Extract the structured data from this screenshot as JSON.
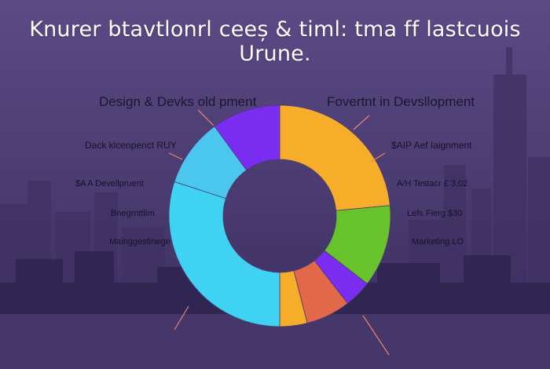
{
  "title": "Knurer btavtlonrl ceeș & timl: tma ff lastcuois Urune.",
  "colors": {
    "background_top": "#5b4a86",
    "background_bottom": "#3a2d5c",
    "label_panel": "#cfc8e6"
  },
  "labels": {
    "left_header": "Design & Devks old pment",
    "right_header": "Fovertnt in Devsllopment",
    "left": [
      "Dack klcenpenct RUY",
      "$A A Devellpruent",
      "Bnegrnttlim",
      "Mainggestinege"
    ],
    "right": [
      "$AIP Aef Iaignment",
      "A/H Testacr £ 3.02",
      "Lefs Fierg $30",
      "Marketing LO"
    ]
  },
  "chart_data": {
    "type": "pie",
    "donut": true,
    "slices": [
      {
        "value": 23.5,
        "color": "#f6ad2a"
      },
      {
        "value": 12.0,
        "color": "#67c22b"
      },
      {
        "value": 4.0,
        "color": "#7a2cf0"
      },
      {
        "value": 6.5,
        "color": "#e2684a"
      },
      {
        "value": 4.0,
        "color": "#f6ad2a"
      },
      {
        "value": 30.0,
        "color": "#3fd2f2"
      },
      {
        "value": 10.0,
        "color": "#4bc7ef"
      },
      {
        "value": 10.0,
        "color": "#7a2cf0"
      }
    ]
  }
}
